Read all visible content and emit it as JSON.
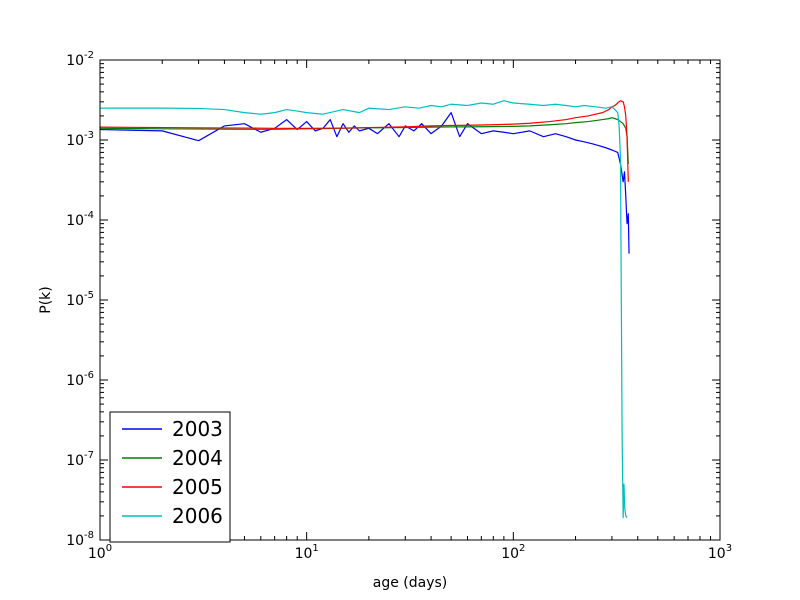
{
  "chart_data": {
    "type": "line",
    "title": "",
    "xlabel": "age (days)",
    "ylabel": "P(k)",
    "xscale": "log",
    "yscale": "log",
    "xlim": [
      1,
      1000
    ],
    "ylim": [
      1e-08,
      0.01
    ],
    "grid": false,
    "legend_position": "lower-left",
    "x_ticks": [
      {
        "value": 1,
        "base": "10",
        "exp": "0"
      },
      {
        "value": 10,
        "base": "10",
        "exp": "1"
      },
      {
        "value": 100,
        "base": "10",
        "exp": "2"
      },
      {
        "value": 1000,
        "base": "10",
        "exp": "3"
      }
    ],
    "y_ticks": [
      {
        "value": 1e-08,
        "base": "10",
        "exp": "-8"
      },
      {
        "value": 1e-07,
        "base": "10",
        "exp": "-7"
      },
      {
        "value": 1e-06,
        "base": "10",
        "exp": "-6"
      },
      {
        "value": 1e-05,
        "base": "10",
        "exp": "-5"
      },
      {
        "value": 0.0001,
        "base": "10",
        "exp": "-4"
      },
      {
        "value": 0.001,
        "base": "10",
        "exp": "-3"
      },
      {
        "value": 0.01,
        "base": "10",
        "exp": "-2"
      }
    ],
    "series": [
      {
        "name": "2003",
        "color": "#0000ff",
        "x": [
          1,
          2,
          3,
          4,
          5,
          6,
          7,
          8,
          9,
          10,
          11,
          12,
          13,
          14,
          15,
          16,
          17,
          18,
          20,
          22,
          25,
          28,
          30,
          33,
          36,
          40,
          45,
          50,
          55,
          60,
          70,
          80,
          90,
          100,
          120,
          140,
          160,
          180,
          200,
          220,
          240,
          260,
          280,
          300,
          320,
          330,
          340,
          345,
          350,
          355,
          360,
          363
        ],
        "y": [
          0.00135,
          0.0013,
          0.00098,
          0.0015,
          0.0016,
          0.00125,
          0.0014,
          0.0018,
          0.00135,
          0.0017,
          0.0013,
          0.0014,
          0.0018,
          0.0011,
          0.0016,
          0.00125,
          0.0015,
          0.0013,
          0.0014,
          0.0012,
          0.0016,
          0.0011,
          0.0015,
          0.0013,
          0.0016,
          0.0012,
          0.0015,
          0.0022,
          0.0011,
          0.0016,
          0.0012,
          0.0013,
          0.00125,
          0.0012,
          0.0013,
          0.0011,
          0.0012,
          0.0011,
          0.001,
          0.00095,
          0.0009,
          0.00085,
          0.0008,
          0.00075,
          0.0007,
          0.0005,
          0.0003,
          0.0004,
          0.0002,
          9e-05,
          0.00012,
          3.8e-05
        ]
      },
      {
        "name": "2004",
        "color": "#008000",
        "x": [
          1,
          2,
          3,
          5,
          7,
          10,
          15,
          20,
          30,
          40,
          50,
          60,
          80,
          100,
          120,
          150,
          180,
          200,
          230,
          250,
          270,
          290,
          300,
          310,
          320,
          330,
          340,
          350,
          355,
          360
        ],
        "y": [
          0.0014,
          0.00138,
          0.00137,
          0.00136,
          0.00136,
          0.00138,
          0.0014,
          0.00142,
          0.00143,
          0.00145,
          0.00146,
          0.00146,
          0.00147,
          0.00148,
          0.0015,
          0.00155,
          0.0016,
          0.00165,
          0.0017,
          0.00175,
          0.0018,
          0.00185,
          0.0019,
          0.00185,
          0.0018,
          0.0017,
          0.0016,
          0.0014,
          0.0011,
          0.0005
        ]
      },
      {
        "name": "2005",
        "color": "#ff0000",
        "x": [
          1,
          2,
          3,
          5,
          7,
          10,
          15,
          20,
          30,
          40,
          50,
          60,
          80,
          100,
          120,
          150,
          180,
          200,
          230,
          250,
          270,
          290,
          300,
          310,
          320,
          330,
          340,
          345,
          350,
          355,
          360
        ],
        "y": [
          0.00145,
          0.00143,
          0.00142,
          0.00141,
          0.0014,
          0.0014,
          0.00141,
          0.00143,
          0.00146,
          0.0015,
          0.00152,
          0.00153,
          0.00155,
          0.00158,
          0.00162,
          0.0017,
          0.0018,
          0.0019,
          0.002,
          0.0021,
          0.0022,
          0.0024,
          0.0026,
          0.0027,
          0.0029,
          0.0031,
          0.003,
          0.0026,
          0.002,
          0.0011,
          0.0003
        ]
      },
      {
        "name": "2006",
        "color": "#00bfbf",
        "x": [
          1,
          2,
          3,
          4,
          5,
          6,
          7,
          8,
          9,
          10,
          12,
          15,
          18,
          20,
          25,
          30,
          35,
          40,
          45,
          50,
          60,
          70,
          80,
          90,
          100,
          120,
          140,
          160,
          180,
          200,
          220,
          250,
          280,
          300,
          310,
          320,
          325,
          330,
          333,
          336,
          340,
          343,
          346,
          350,
          355
        ],
        "y": [
          0.0025,
          0.0025,
          0.00248,
          0.0024,
          0.0022,
          0.0021,
          0.0022,
          0.0024,
          0.0023,
          0.0022,
          0.0021,
          0.0024,
          0.0022,
          0.0025,
          0.0024,
          0.0026,
          0.0025,
          0.0027,
          0.0026,
          0.0028,
          0.0027,
          0.0029,
          0.0028,
          0.0031,
          0.0029,
          0.0028,
          0.0027,
          0.0028,
          0.0027,
          0.0026,
          0.0027,
          0.0026,
          0.0025,
          0.0026,
          0.0024,
          0.0022,
          0.0015,
          0.0006,
          1e-05,
          2e-07,
          1.9e-08,
          5e-08,
          2.5e-08,
          2e-08,
          1.9e-08
        ]
      }
    ]
  }
}
